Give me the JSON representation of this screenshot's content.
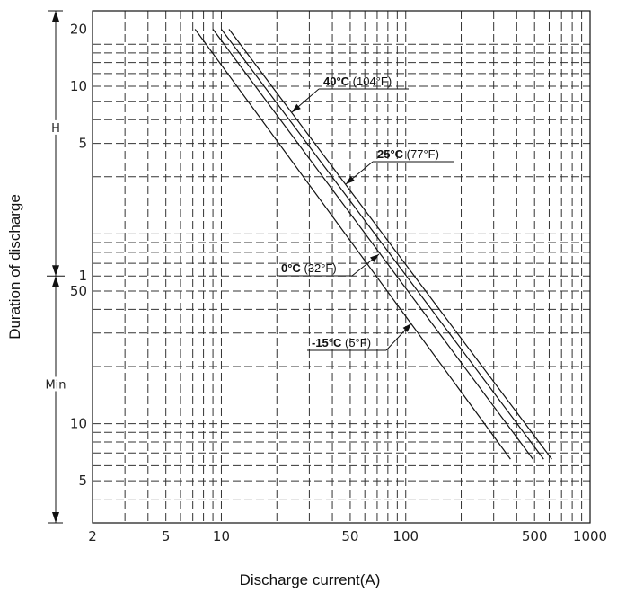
{
  "chart_data": {
    "type": "line",
    "xscale": "log",
    "yscale": "log",
    "xlabel": "Discharge current(A)",
    "ylabel": "Duration of discharge",
    "xlim": [
      2,
      1000
    ],
    "ylim_minutes": [
      3,
      1500
    ],
    "grid": true,
    "x_ticks": [
      {
        "value": 2,
        "label": "2"
      },
      {
        "value": 5,
        "label": "5"
      },
      {
        "value": 10,
        "label": "10"
      },
      {
        "value": 50,
        "label": "50"
      },
      {
        "value": 100,
        "label": "100"
      },
      {
        "value": 500,
        "label": "500"
      },
      {
        "value": 1000,
        "label": "1000"
      }
    ],
    "y_ticks": [
      {
        "value_minutes": 1200,
        "label": "20"
      },
      {
        "value_minutes": 600,
        "label": "10"
      },
      {
        "value_minutes": 300,
        "label": "5"
      },
      {
        "value_minutes": 60,
        "label": "1"
      },
      {
        "value_minutes": 50,
        "label": "50"
      },
      {
        "value_minutes": 10,
        "label": "10"
      },
      {
        "value_minutes": 5,
        "label": "5"
      }
    ],
    "y_units": [
      {
        "label": "H",
        "value_minutes": 360
      },
      {
        "label": "Min",
        "value_minutes": 16
      }
    ],
    "series": [
      {
        "name_bold": "40°C",
        "name_rest": " (104°F)",
        "points": [
          [
            11,
            1200
          ],
          [
            620,
            6.5
          ]
        ]
      },
      {
        "name_bold": "25°C",
        "name_rest": " (77°F)",
        "points": [
          [
            10,
            1200
          ],
          [
            560,
            6.5
          ]
        ]
      },
      {
        "name_bold": "0°C",
        "name_rest": " (32°F)",
        "points": [
          [
            9,
            1200
          ],
          [
            490,
            6.5
          ]
        ]
      },
      {
        "name_bold": "-15°C",
        "name_rest": " (5°F)",
        "points": [
          [
            7.2,
            1200
          ],
          [
            370,
            6.5
          ]
        ]
      }
    ]
  }
}
